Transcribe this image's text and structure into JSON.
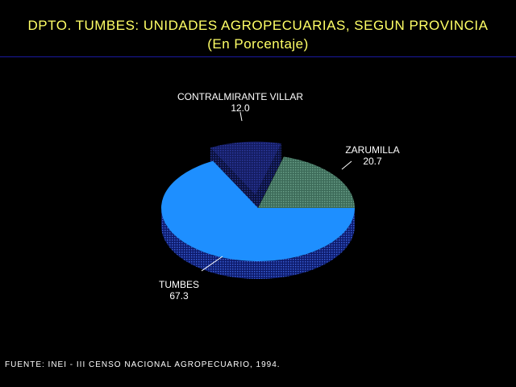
{
  "title": "DPTO. TUMBES: UNIDADES AGROPECUARIAS, SEGUN PROVINCIA",
  "subtitle": "(En Porcentaje)",
  "source": "FUENTE: INEI - III CENSO NACIONAL AGROPECUARIO, 1994.",
  "colors": {
    "background": "#000000",
    "title": "#ffff66",
    "rule": "#1a1aa0"
  },
  "chart_data": {
    "type": "pie",
    "title": "DPTO. TUMBES: UNIDADES AGROPECUARIAS, SEGUN PROVINCIA",
    "subtitle": "(En Porcentaje)",
    "style": "3d-exploded",
    "legend": "none",
    "slices": [
      {
        "label": "TUMBES",
        "value": 67.3,
        "value_text": "67.3",
        "color": "#1e8fff",
        "side_color": "#2a3a9a",
        "exploded": false
      },
      {
        "label": "CONTRALMIRANTE VILLAR",
        "value": 12.0,
        "value_text": "12.0",
        "color": "#1a2478",
        "side_color": "#101850",
        "exploded": true
      },
      {
        "label": "ZARUMILLA",
        "value": 20.7,
        "value_text": "20.7",
        "color": "#4a7e6a",
        "side_color": "#2c4c40",
        "exploded": false
      }
    ]
  }
}
